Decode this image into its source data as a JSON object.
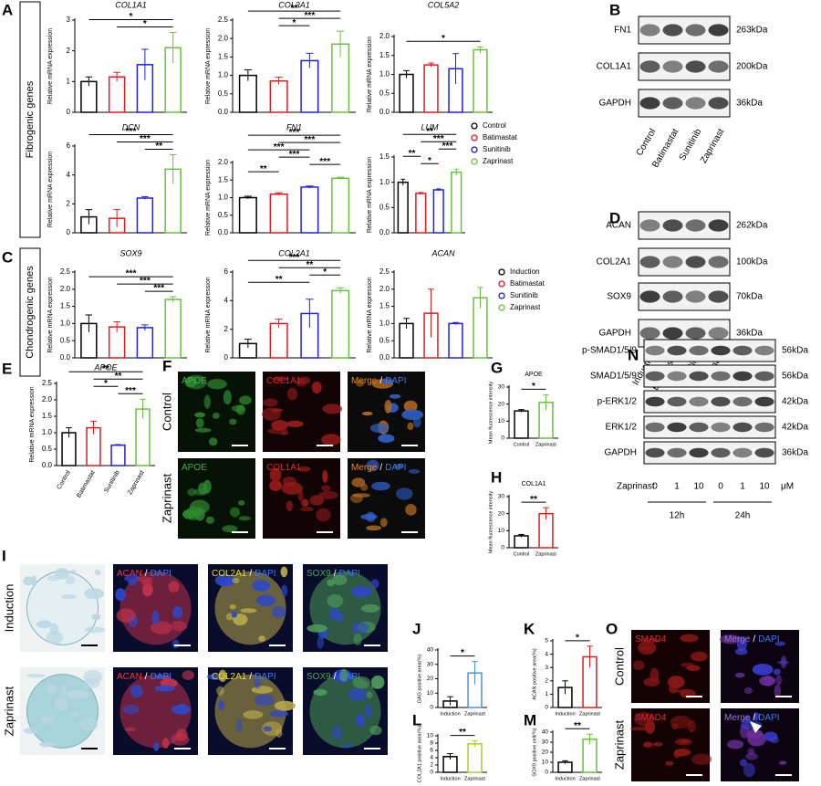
{
  "panel_labels": [
    "A",
    "B",
    "C",
    "D",
    "E",
    "F",
    "G",
    "H",
    "I",
    "J",
    "K",
    "L",
    "M",
    "N",
    "O"
  ],
  "group_labels": [
    "Fibrogenic genes",
    "Chondrogenic genes"
  ],
  "legends": [
    {
      "entries": [
        "Control",
        "Batimastat",
        "Sunitinib",
        "Zaprinast"
      ],
      "colors": [
        "#000000",
        "#e31a1c",
        "#1f1fe0",
        "#66c23a"
      ]
    },
    {
      "entries": [
        "Induction",
        "Batimastat",
        "Sunitinib",
        "Zaprinast"
      ],
      "colors": [
        "#000000",
        "#e31a1c",
        "#1f1fe0",
        "#66c23a"
      ]
    }
  ],
  "chart_data": [
    {
      "type": "bar",
      "title": "COL1A1",
      "ylabel": "Relative mRNA expression",
      "categories": [
        null,
        null,
        null,
        null
      ],
      "values": [
        1.0,
        1.15,
        1.55,
        2.1
      ],
      "errors": [
        0.15,
        0.15,
        0.5,
        0.5
      ],
      "colors": [
        "#000000",
        "#e31a1c",
        "#1f1fe0",
        "#66c23a"
      ],
      "ylim": [
        0,
        3
      ],
      "yticks": [
        0,
        1,
        2,
        3
      ],
      "comparisons": [
        {
          "groups": [
            0,
            3
          ],
          "label": "*"
        },
        {
          "groups": [
            1,
            3
          ],
          "label": "*"
        }
      ]
    },
    {
      "type": "bar",
      "title": "COL3A1",
      "ylabel": "Relative mRNA expression",
      "categories": [
        null,
        null,
        null,
        null
      ],
      "values": [
        1.0,
        0.85,
        1.4,
        1.85
      ],
      "errors": [
        0.15,
        0.1,
        0.2,
        0.35
      ],
      "colors": [
        "#000000",
        "#e31a1c",
        "#1f1fe0",
        "#66c23a"
      ],
      "ylim": [
        0,
        2.5
      ],
      "yticks": [
        {
          "value": 0,
          "label": "0.0"
        },
        0.5,
        {
          "value": 1,
          "label": "1.0"
        },
        1.5,
        {
          "value": 2,
          "label": "2.0"
        },
        2.5
      ],
      "comparisons": [
        {
          "groups": [
            0,
            3
          ],
          "label": "**"
        },
        {
          "groups": [
            1,
            3
          ],
          "label": "***"
        },
        {
          "groups": [
            1,
            2
          ],
          "label": "*"
        }
      ]
    },
    {
      "type": "bar",
      "title": "COL5A2",
      "ylabel": "Relative mRNA expression",
      "categories": [
        null,
        null,
        null,
        null
      ],
      "values": [
        1.0,
        1.25,
        1.15,
        1.65
      ],
      "errors": [
        0.1,
        0.05,
        0.4,
        0.08
      ],
      "colors": [
        "#000000",
        "#e31a1c",
        "#1f1fe0",
        "#66c23a"
      ],
      "ylim": [
        0,
        2
      ],
      "yticks": [
        {
          "value": 0,
          "label": "0.0"
        },
        0.5,
        {
          "value": 1,
          "label": "1.0"
        },
        1.5,
        {
          "value": 2,
          "label": "2.0"
        }
      ],
      "comparisons": [
        {
          "groups": [
            0,
            3
          ],
          "label": "*"
        }
      ]
    },
    {
      "type": "bar",
      "title": "DCN",
      "ylabel": "Relative mRNA expression",
      "categories": [
        null,
        null,
        null,
        null
      ],
      "values": [
        1.1,
        1.0,
        2.4,
        4.4
      ],
      "errors": [
        0.5,
        0.6,
        0.1,
        1.0
      ],
      "colors": [
        "#000000",
        "#e31a1c",
        "#1f1fe0",
        "#66c23a"
      ],
      "ylim": [
        0,
        6
      ],
      "yticks": [
        0,
        2,
        4,
        6
      ],
      "comparisons": [
        {
          "groups": [
            0,
            3
          ],
          "label": "***"
        },
        {
          "groups": [
            1,
            3
          ],
          "label": "***"
        },
        {
          "groups": [
            2,
            3
          ],
          "label": "**"
        }
      ]
    },
    {
      "type": "bar",
      "title": "FN1",
      "ylabel": "Relative mRNA expression",
      "categories": [
        null,
        null,
        null,
        null
      ],
      "values": [
        1.0,
        1.1,
        1.3,
        1.55
      ],
      "errors": [
        0.04,
        0.04,
        0.03,
        0.03
      ],
      "colors": [
        "#000000",
        "#e31a1c",
        "#1f1fe0",
        "#66c23a"
      ],
      "ylim": [
        0,
        2
      ],
      "yticks": [
        {
          "value": 0,
          "label": "0.0"
        },
        0.5,
        {
          "value": 1,
          "label": "1.0"
        },
        1.5,
        {
          "value": 2,
          "label": "2.0"
        }
      ],
      "comparisons": [
        {
          "groups": [
            0,
            3
          ],
          "label": "***"
        },
        {
          "groups": [
            1,
            3
          ],
          "label": "***"
        },
        {
          "groups": [
            0,
            2
          ],
          "label": "***"
        },
        {
          "groups": [
            1,
            2
          ],
          "label": "***"
        },
        {
          "groups": [
            2,
            3
          ],
          "label": "***"
        },
        {
          "groups": [
            0,
            1
          ],
          "label": "**"
        }
      ]
    },
    {
      "type": "bar",
      "title": "LUM",
      "ylabel": "Relative mRNA expression",
      "categories": [
        null,
        null,
        null,
        null
      ],
      "values": [
        1.0,
        0.78,
        0.85,
        1.2
      ],
      "errors": [
        0.06,
        0.02,
        0.02,
        0.06
      ],
      "colors": [
        "#000000",
        "#e31a1c",
        "#1f1fe0",
        "#66c23a"
      ],
      "ylim": [
        0,
        1.5
      ],
      "yticks": [
        {
          "value": 0,
          "label": "0.0"
        },
        0.5,
        {
          "value": 1,
          "label": "1.0"
        },
        1.5
      ],
      "comparisons": [
        {
          "groups": [
            0,
            3
          ],
          "label": "**"
        },
        {
          "groups": [
            1,
            3
          ],
          "label": "***"
        },
        {
          "groups": [
            2,
            3
          ],
          "label": "***"
        },
        {
          "groups": [
            0,
            1
          ],
          "label": "**"
        },
        {
          "groups": [
            1,
            2
          ],
          "label": "*"
        }
      ]
    },
    {
      "type": "bar",
      "title": "SOX9",
      "ylabel": "Relative mRNA expression",
      "categories": [
        null,
        null,
        null,
        null
      ],
      "values": [
        1.0,
        0.9,
        0.88,
        1.7
      ],
      "errors": [
        0.25,
        0.15,
        0.08,
        0.08
      ],
      "colors": [
        "#000000",
        "#e31a1c",
        "#1f1fe0",
        "#66c23a"
      ],
      "ylim": [
        0,
        2.5
      ],
      "yticks": [
        {
          "value": 0,
          "label": "0.0"
        },
        0.5,
        {
          "value": 1,
          "label": "1.0"
        },
        1.5,
        {
          "value": 2,
          "label": "2.0"
        },
        2.5
      ],
      "comparisons": [
        {
          "groups": [
            0,
            3
          ],
          "label": "***"
        },
        {
          "groups": [
            1,
            3
          ],
          "label": "***"
        },
        {
          "groups": [
            2,
            3
          ],
          "label": "***"
        }
      ]
    },
    {
      "type": "bar",
      "title": "COL2A1",
      "ylabel": "Relative mRNA expression",
      "categories": [
        null,
        null,
        null,
        null
      ],
      "values": [
        1.0,
        2.4,
        3.1,
        4.7
      ],
      "errors": [
        0.3,
        0.3,
        1.0,
        0.2
      ],
      "colors": [
        "#000000",
        "#e31a1c",
        "#1f1fe0",
        "#66c23a"
      ],
      "ylim": [
        0,
        6
      ],
      "yticks": [
        0,
        2,
        4,
        6
      ],
      "comparisons": [
        {
          "groups": [
            0,
            3
          ],
          "label": "***"
        },
        {
          "groups": [
            1,
            3
          ],
          "label": "**"
        },
        {
          "groups": [
            2,
            3
          ],
          "label": "*"
        },
        {
          "groups": [
            0,
            2
          ],
          "label": "**"
        }
      ]
    },
    {
      "type": "bar",
      "title": "ACAN",
      "ylabel": "Relative mRNA expression",
      "categories": [
        null,
        null,
        null,
        null
      ],
      "values": [
        1.0,
        1.3,
        1.0,
        1.75
      ],
      "errors": [
        0.15,
        0.7,
        0.03,
        0.3
      ],
      "colors": [
        "#000000",
        "#e31a1c",
        "#1f1fe0",
        "#66c23a"
      ],
      "ylim": [
        0,
        2.5
      ],
      "yticks": [
        {
          "value": 0,
          "label": "0.0"
        },
        0.5,
        {
          "value": 1,
          "label": "1.0"
        },
        1.5,
        {
          "value": 2,
          "label": "2.0"
        },
        2.5
      ],
      "comparisons": []
    },
    {
      "type": "bar",
      "title": "APOE",
      "ylabel": "Relative mRNA expression",
      "categories": [
        "Control",
        "Batimastat",
        "Sunitinib",
        "Zaprinast"
      ],
      "values": [
        1.0,
        1.15,
        0.62,
        1.72
      ],
      "errors": [
        0.15,
        0.2,
        0.02,
        0.3
      ],
      "colors": [
        "#000000",
        "#e31a1c",
        "#1f1fe0",
        "#66c23a"
      ],
      "ylim": [
        0,
        2.5
      ],
      "yticks": [
        {
          "value": 0,
          "label": "0.0"
        },
        0.5,
        {
          "value": 1,
          "label": "1.0"
        },
        1.5,
        {
          "value": 2,
          "label": "2.0"
        },
        2.5
      ],
      "comparisons": [
        {
          "groups": [
            0,
            3
          ],
          "label": "**"
        },
        {
          "groups": [
            1,
            3
          ],
          "label": "**"
        },
        {
          "groups": [
            1,
            2
          ],
          "label": "*"
        },
        {
          "groups": [
            2,
            3
          ],
          "label": "***"
        }
      ]
    },
    {
      "type": "bar",
      "title": "APOE",
      "ylabel": "Mean fluorescence intensity",
      "categories": [
        "Control",
        "Zaprinast"
      ],
      "values": [
        16,
        21
      ],
      "errors": [
        0.8,
        4.5
      ],
      "colors": [
        "#000000",
        "#66c23a"
      ],
      "ylim": [
        0,
        30
      ],
      "yticks": [
        0,
        10,
        20,
        30
      ],
      "comparisons": [
        {
          "groups": [
            0,
            1
          ],
          "label": "*"
        }
      ]
    },
    {
      "type": "bar",
      "title": "COL1A1",
      "ylabel": "Mean fluorescence intensity",
      "categories": [
        "Control",
        "Zaprinast"
      ],
      "values": [
        7,
        20
      ],
      "errors": [
        0.8,
        3.5
      ],
      "colors": [
        "#000000",
        "#e31a1c"
      ],
      "ylim": [
        0,
        30
      ],
      "yticks": [
        0,
        10,
        20,
        30
      ],
      "comparisons": [
        {
          "groups": [
            0,
            1
          ],
          "label": "**"
        }
      ]
    },
    {
      "type": "bar",
      "ylabel": "GAG positive area(%)",
      "categories": [
        "Induction",
        "Zaprinast"
      ],
      "values": [
        4.5,
        24
      ],
      "errors": [
        3,
        8
      ],
      "colors": [
        "#000000",
        "#4a90e2"
      ],
      "ylim": [
        0,
        40
      ],
      "yticks": [
        0,
        10,
        20,
        30,
        40
      ],
      "comparisons": [
        {
          "groups": [
            0,
            1
          ],
          "label": "*"
        }
      ]
    },
    {
      "type": "bar",
      "ylabel": "ACAN positive area(%)",
      "categories": [
        "Induction",
        "Zaprinast"
      ],
      "values": [
        1.5,
        3.8
      ],
      "errors": [
        0.5,
        0.8
      ],
      "colors": [
        "#000000",
        "#e31a1c"
      ],
      "ylim": [
        0,
        5
      ],
      "yticks": [
        0,
        1,
        2,
        3,
        4,
        5
      ],
      "comparisons": [
        {
          "groups": [
            0,
            1
          ],
          "label": "*"
        }
      ]
    },
    {
      "type": "bar",
      "ylabel": "COL2A1 positive area(%)",
      "categories": [
        "Induction",
        "Zaprinast"
      ],
      "values": [
        4.3,
        7.8
      ],
      "errors": [
        0.8,
        0.8
      ],
      "colors": [
        "#000000",
        "#b5c92a"
      ],
      "ylim": [
        0,
        10
      ],
      "yticks": [
        0,
        2,
        4,
        6,
        8,
        10
      ],
      "comparisons": [
        {
          "groups": [
            0,
            1
          ],
          "label": "**"
        }
      ]
    },
    {
      "type": "bar",
      "ylabel": "SOX9 positive cell(%)",
      "categories": [
        "Induction",
        "Zaprinast"
      ],
      "values": [
        10,
        33
      ],
      "errors": [
        1.5,
        5
      ],
      "colors": [
        "#000000",
        "#66c23a"
      ],
      "ylim": [
        0,
        40
      ],
      "yticks": [
        0,
        10,
        20,
        30,
        40
      ],
      "comparisons": [
        {
          "groups": [
            0,
            1
          ],
          "label": "**"
        }
      ]
    }
  ],
  "blots": [
    {
      "proteins": [
        "FN1",
        "COL1A1",
        "GAPDH"
      ],
      "sizes": [
        "263kDa",
        "200kDa",
        "36kDa"
      ],
      "lanes": [
        "Control",
        "Batimastat",
        "Sunitinib",
        "Zaprinast"
      ]
    },
    {
      "proteins": [
        "ACAN",
        "COL2A1",
        "SOX9",
        "GAPDH"
      ],
      "sizes": [
        "262kDa",
        "100kDa",
        "70kDa",
        "36kDa"
      ],
      "lanes": [
        "Induction",
        "Batimastat",
        "Sunitinib",
        "Zaprinast"
      ]
    },
    {
      "proteins": [
        "p-SMAD1/5/9",
        "SMAD1/5/9",
        "p-ERK1/2",
        "ERK1/2",
        "GAPDH"
      ],
      "sizes": [
        "56kDa",
        "56kDa",
        "42kDa",
        "42kDa",
        "36kDa"
      ],
      "treatment": "Zaprinast",
      "doses": [
        0,
        1,
        10,
        0,
        1,
        10
      ],
      "unit": "μM",
      "times": [
        "12h",
        "24h"
      ]
    }
  ],
  "image_panels": [
    {
      "rows": [
        "Control",
        "Zaprinast"
      ],
      "columns": [
        {
          "parts": [
            "APOE"
          ],
          "colors": [
            "#3db04a"
          ]
        },
        {
          "parts": [
            "COL1A1"
          ],
          "colors": [
            "#e8212a"
          ]
        },
        {
          "parts": [
            "Merge",
            "/",
            "DAPI"
          ],
          "colors": [
            "#f08a24",
            "#ffffff",
            "#3a7bf0"
          ]
        }
      ]
    },
    {
      "rows": [
        "Induction",
        "Zaprinast"
      ],
      "columns": [
        {
          "parts": [
            "ACAN",
            "/",
            "DAPI"
          ],
          "colors": [
            "#ff3030",
            "#ffffff",
            "#3a7bf0"
          ]
        },
        {
          "parts": [
            "COL2A1",
            "/",
            "DAPI"
          ],
          "colors": [
            "#f2e200",
            "#ffffff",
            "#3a7bf0"
          ]
        },
        {
          "parts": [
            "SOX9",
            "/",
            "DAPI"
          ],
          "colors": [
            "#3db04a",
            "#ffffff",
            "#3a7bf0"
          ]
        }
      ]
    },
    {
      "rows": [
        "Control",
        "Zaprinast"
      ],
      "columns": [
        {
          "parts": [
            "SMAD4"
          ],
          "colors": [
            "#e8212a"
          ]
        },
        {
          "parts": [
            "Merge",
            "/",
            "DAPI"
          ],
          "colors": [
            "#a070e0",
            "#ffffff",
            "#3a7bf0"
          ]
        }
      ]
    }
  ]
}
